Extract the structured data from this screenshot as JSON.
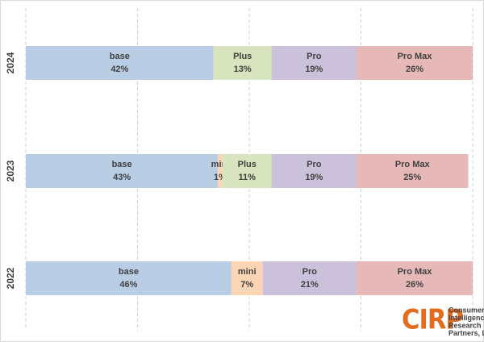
{
  "chart_data": {
    "type": "stacked-bar-horizontal",
    "categories": [
      "2024",
      "2023",
      "2022"
    ],
    "series": [
      {
        "name": "base",
        "color": "#b9cde5",
        "values": [
          42,
          43,
          46
        ],
        "value_labels": [
          "42%",
          "43%",
          "46%"
        ]
      },
      {
        "name": "mini",
        "color": "#fcd5b5",
        "values": [
          null,
          1,
          7
        ],
        "value_labels": [
          null,
          "1%",
          "7%"
        ]
      },
      {
        "name": "Plus",
        "color": "#d7e4bd",
        "values": [
          13,
          11,
          null
        ],
        "value_labels": [
          "13%",
          "11%",
          null
        ]
      },
      {
        "name": "Pro",
        "color": "#ccc1da",
        "values": [
          19,
          19,
          21
        ],
        "value_labels": [
          "19%",
          "19%",
          "21%"
        ]
      },
      {
        "name": "Pro Max",
        "color": "#e6b9b8",
        "values": [
          26,
          25,
          26
        ],
        "value_labels": [
          "26%",
          "25%",
          "26%"
        ]
      }
    ],
    "xlim": [
      0,
      100
    ],
    "xticks": [
      0,
      25,
      50,
      75,
      100
    ],
    "grid": true,
    "logo": {
      "mark": "CIRP",
      "lines": [
        "Consumer",
        "Intelligence",
        "Research",
        "Partners, LLC"
      ]
    }
  }
}
